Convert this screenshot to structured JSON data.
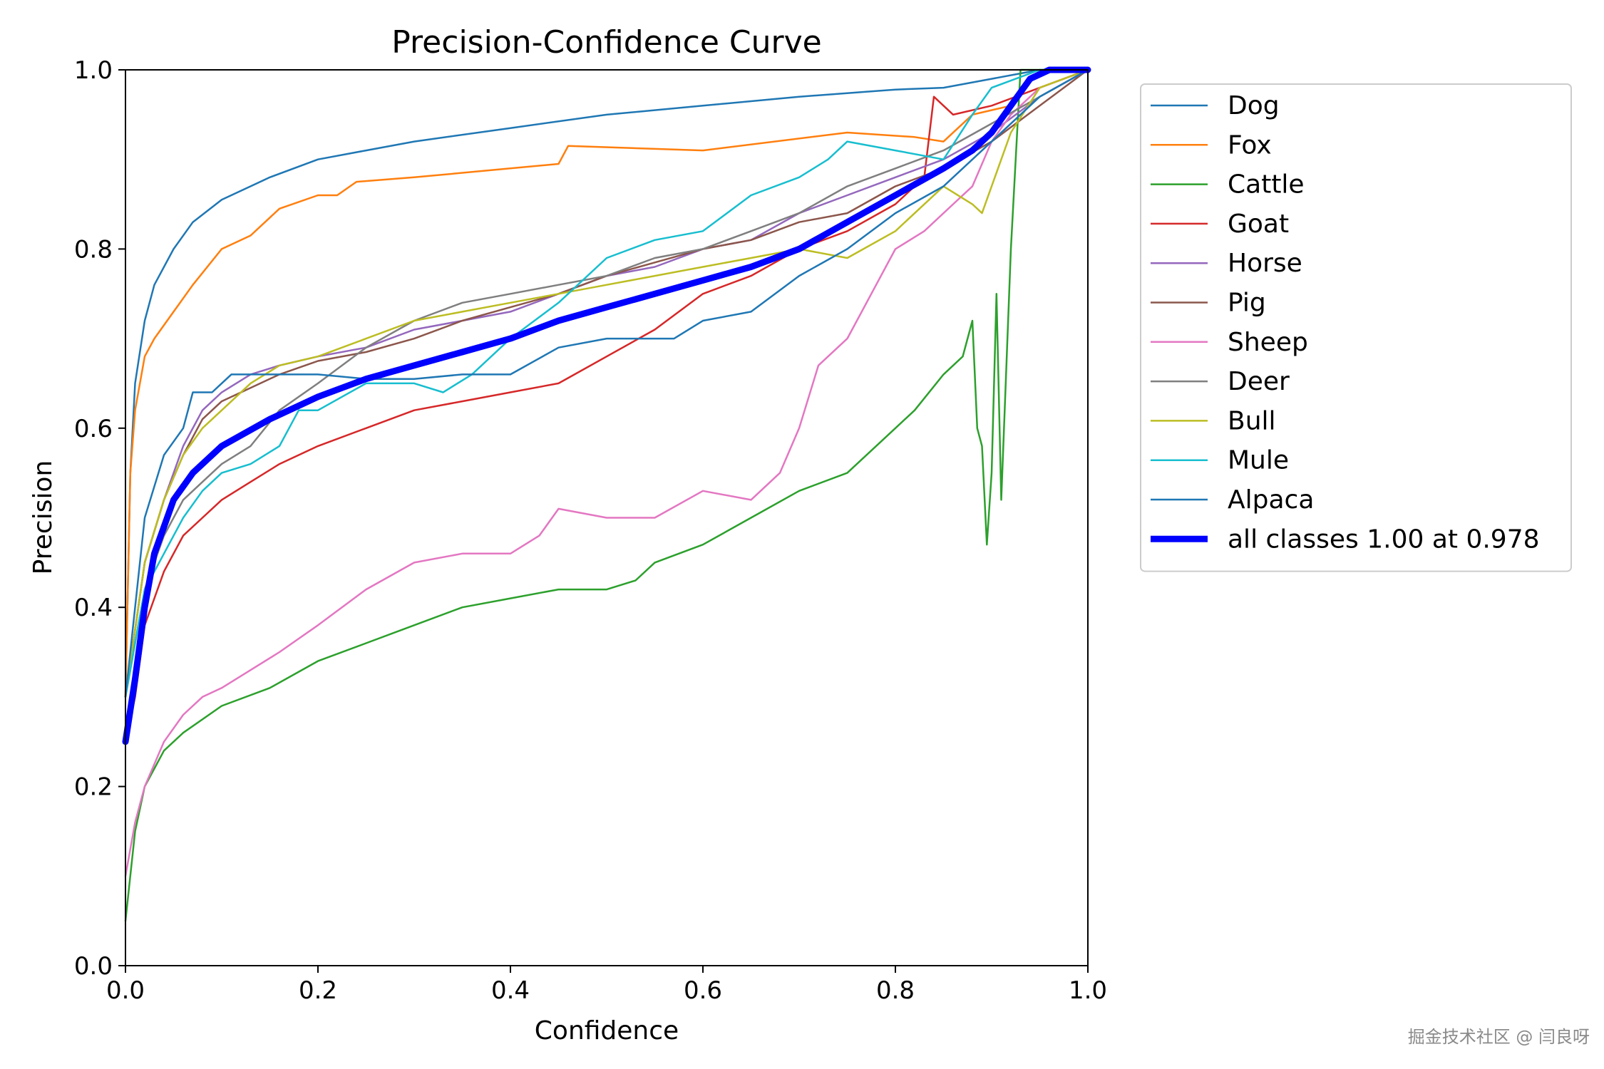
{
  "chart_data": {
    "type": "line",
    "title": "Precision-Confidence Curve",
    "xlabel": "Confidence",
    "ylabel": "Precision",
    "xlim": [
      0,
      1
    ],
    "ylim": [
      0,
      1
    ],
    "xticks": [
      "0.0",
      "0.2",
      "0.4",
      "0.6",
      "0.8",
      "1.0"
    ],
    "yticks": [
      "0.0",
      "0.2",
      "0.4",
      "0.6",
      "0.8",
      "1.0"
    ],
    "grid": false,
    "legend_position": "outside-right-top",
    "series": [
      {
        "name": "Dog",
        "color": "#1f77b4",
        "x": [
          0,
          0.005,
          0.01,
          0.02,
          0.03,
          0.05,
          0.07,
          0.1,
          0.15,
          0.2,
          0.25,
          0.3,
          0.4,
          0.5,
          0.6,
          0.7,
          0.8,
          0.85,
          0.9,
          0.95,
          1.0
        ],
        "y": [
          0.3,
          0.55,
          0.65,
          0.72,
          0.76,
          0.8,
          0.83,
          0.855,
          0.88,
          0.9,
          0.91,
          0.92,
          0.935,
          0.95,
          0.96,
          0.97,
          0.978,
          0.98,
          0.99,
          1.0,
          1.0
        ]
      },
      {
        "name": "Fox",
        "color": "#ff7f0e",
        "x": [
          0,
          0.005,
          0.01,
          0.02,
          0.03,
          0.05,
          0.07,
          0.1,
          0.13,
          0.16,
          0.2,
          0.22,
          0.24,
          0.3,
          0.45,
          0.46,
          0.6,
          0.75,
          0.82,
          0.85,
          0.88,
          0.92,
          0.95,
          1.0
        ],
        "y": [
          0.3,
          0.55,
          0.62,
          0.68,
          0.7,
          0.73,
          0.76,
          0.8,
          0.815,
          0.845,
          0.86,
          0.86,
          0.875,
          0.88,
          0.895,
          0.915,
          0.91,
          0.93,
          0.925,
          0.92,
          0.95,
          0.96,
          1.0,
          1.0
        ]
      },
      {
        "name": "Cattle",
        "color": "#2ca02c",
        "x": [
          0,
          0.01,
          0.02,
          0.04,
          0.06,
          0.1,
          0.15,
          0.2,
          0.25,
          0.3,
          0.35,
          0.4,
          0.45,
          0.5,
          0.53,
          0.55,
          0.6,
          0.65,
          0.7,
          0.75,
          0.8,
          0.82,
          0.85,
          0.87,
          0.88,
          0.885,
          0.89,
          0.895,
          0.9,
          0.905,
          0.91,
          0.92,
          0.93,
          1.0
        ],
        "y": [
          0.05,
          0.15,
          0.2,
          0.24,
          0.26,
          0.29,
          0.31,
          0.34,
          0.36,
          0.38,
          0.4,
          0.41,
          0.42,
          0.42,
          0.43,
          0.45,
          0.47,
          0.5,
          0.53,
          0.55,
          0.6,
          0.62,
          0.66,
          0.68,
          0.72,
          0.6,
          0.58,
          0.47,
          0.55,
          0.75,
          0.52,
          0.8,
          1.0,
          1.0
        ]
      },
      {
        "name": "Goat",
        "color": "#d62728",
        "x": [
          0,
          0.01,
          0.02,
          0.04,
          0.06,
          0.08,
          0.1,
          0.13,
          0.16,
          0.2,
          0.25,
          0.3,
          0.35,
          0.4,
          0.45,
          0.5,
          0.55,
          0.6,
          0.65,
          0.7,
          0.75,
          0.8,
          0.83,
          0.84,
          0.86,
          0.9,
          0.95,
          1.0
        ],
        "y": [
          0.25,
          0.3,
          0.38,
          0.44,
          0.48,
          0.5,
          0.52,
          0.54,
          0.56,
          0.58,
          0.6,
          0.62,
          0.63,
          0.64,
          0.65,
          0.68,
          0.71,
          0.75,
          0.77,
          0.8,
          0.82,
          0.85,
          0.88,
          0.97,
          0.95,
          0.96,
          0.98,
          1.0
        ]
      },
      {
        "name": "Horse",
        "color": "#9467bd",
        "x": [
          0,
          0.02,
          0.04,
          0.06,
          0.08,
          0.1,
          0.13,
          0.16,
          0.2,
          0.25,
          0.3,
          0.35,
          0.4,
          0.45,
          0.5,
          0.55,
          0.6,
          0.65,
          0.7,
          0.75,
          0.8,
          0.85,
          0.9,
          0.95,
          1.0
        ],
        "y": [
          0.3,
          0.45,
          0.52,
          0.58,
          0.62,
          0.64,
          0.66,
          0.67,
          0.68,
          0.69,
          0.71,
          0.72,
          0.73,
          0.75,
          0.77,
          0.78,
          0.8,
          0.81,
          0.84,
          0.86,
          0.88,
          0.9,
          0.93,
          0.97,
          1.0
        ]
      },
      {
        "name": "Pig",
        "color": "#8c564b",
        "x": [
          0,
          0.02,
          0.04,
          0.06,
          0.08,
          0.1,
          0.13,
          0.16,
          0.2,
          0.25,
          0.3,
          0.35,
          0.4,
          0.45,
          0.5,
          0.55,
          0.6,
          0.65,
          0.7,
          0.75,
          0.8,
          0.85,
          0.9,
          0.95,
          1.0
        ],
        "y": [
          0.3,
          0.45,
          0.52,
          0.57,
          0.61,
          0.63,
          0.645,
          0.66,
          0.675,
          0.685,
          0.7,
          0.72,
          0.735,
          0.75,
          0.77,
          0.785,
          0.8,
          0.81,
          0.83,
          0.84,
          0.87,
          0.89,
          0.92,
          0.96,
          1.0
        ]
      },
      {
        "name": "Sheep",
        "color": "#e377c2",
        "x": [
          0,
          0.01,
          0.02,
          0.04,
          0.06,
          0.08,
          0.1,
          0.13,
          0.16,
          0.2,
          0.25,
          0.3,
          0.35,
          0.4,
          0.43,
          0.45,
          0.5,
          0.55,
          0.6,
          0.65,
          0.68,
          0.7,
          0.72,
          0.75,
          0.78,
          0.8,
          0.83,
          0.86,
          0.88,
          0.9,
          0.92,
          0.95,
          1.0
        ],
        "y": [
          0.1,
          0.16,
          0.2,
          0.25,
          0.28,
          0.3,
          0.31,
          0.33,
          0.35,
          0.38,
          0.42,
          0.45,
          0.46,
          0.46,
          0.48,
          0.51,
          0.5,
          0.5,
          0.53,
          0.52,
          0.55,
          0.6,
          0.67,
          0.7,
          0.76,
          0.8,
          0.82,
          0.85,
          0.87,
          0.92,
          0.95,
          0.98,
          1.0
        ]
      },
      {
        "name": "Deer",
        "color": "#7f7f7f",
        "x": [
          0,
          0.02,
          0.04,
          0.06,
          0.08,
          0.1,
          0.13,
          0.16,
          0.2,
          0.25,
          0.3,
          0.35,
          0.4,
          0.45,
          0.5,
          0.55,
          0.6,
          0.65,
          0.7,
          0.75,
          0.8,
          0.85,
          0.9,
          0.95,
          1.0
        ],
        "y": [
          0.3,
          0.42,
          0.48,
          0.52,
          0.54,
          0.56,
          0.58,
          0.62,
          0.65,
          0.69,
          0.72,
          0.74,
          0.75,
          0.76,
          0.77,
          0.79,
          0.8,
          0.82,
          0.84,
          0.87,
          0.89,
          0.91,
          0.94,
          0.97,
          1.0
        ]
      },
      {
        "name": "Bull",
        "color": "#bcbd22",
        "x": [
          0,
          0.02,
          0.04,
          0.06,
          0.08,
          0.1,
          0.13,
          0.16,
          0.2,
          0.25,
          0.3,
          0.35,
          0.4,
          0.45,
          0.5,
          0.55,
          0.6,
          0.65,
          0.7,
          0.75,
          0.8,
          0.85,
          0.88,
          0.89,
          0.92,
          0.95,
          1.0
        ],
        "y": [
          0.3,
          0.45,
          0.52,
          0.57,
          0.6,
          0.62,
          0.65,
          0.67,
          0.68,
          0.7,
          0.72,
          0.73,
          0.74,
          0.75,
          0.76,
          0.77,
          0.78,
          0.79,
          0.8,
          0.79,
          0.82,
          0.87,
          0.85,
          0.84,
          0.93,
          0.98,
          1.0
        ]
      },
      {
        "name": "Mule",
        "color": "#17becf",
        "x": [
          0,
          0.02,
          0.04,
          0.06,
          0.08,
          0.1,
          0.13,
          0.16,
          0.18,
          0.2,
          0.25,
          0.3,
          0.33,
          0.36,
          0.4,
          0.45,
          0.5,
          0.55,
          0.6,
          0.65,
          0.7,
          0.73,
          0.75,
          0.8,
          0.85,
          0.88,
          0.9,
          0.95,
          1.0
        ],
        "y": [
          0.3,
          0.42,
          0.46,
          0.5,
          0.53,
          0.55,
          0.56,
          0.58,
          0.62,
          0.62,
          0.65,
          0.65,
          0.64,
          0.66,
          0.7,
          0.74,
          0.79,
          0.81,
          0.82,
          0.86,
          0.88,
          0.9,
          0.92,
          0.91,
          0.9,
          0.95,
          0.98,
          1.0,
          1.0
        ]
      },
      {
        "name": "Alpaca",
        "color": "#1f77b4",
        "x": [
          0,
          0.02,
          0.04,
          0.06,
          0.07,
          0.09,
          0.1,
          0.11,
          0.15,
          0.2,
          0.25,
          0.3,
          0.35,
          0.4,
          0.45,
          0.5,
          0.55,
          0.57,
          0.6,
          0.65,
          0.7,
          0.75,
          0.8,
          0.85,
          0.9,
          0.95,
          1.0
        ],
        "y": [
          0.3,
          0.5,
          0.57,
          0.6,
          0.64,
          0.64,
          0.65,
          0.66,
          0.66,
          0.66,
          0.655,
          0.655,
          0.66,
          0.66,
          0.69,
          0.7,
          0.7,
          0.7,
          0.72,
          0.73,
          0.77,
          0.8,
          0.84,
          0.87,
          0.92,
          0.97,
          1.0
        ]
      },
      {
        "name": "all classes 1.00 at 0.978",
        "color": "#0000ff",
        "bold": true,
        "x": [
          0,
          0.01,
          0.02,
          0.03,
          0.05,
          0.07,
          0.1,
          0.15,
          0.2,
          0.25,
          0.3,
          0.35,
          0.4,
          0.45,
          0.5,
          0.55,
          0.6,
          0.65,
          0.7,
          0.75,
          0.8,
          0.85,
          0.88,
          0.9,
          0.92,
          0.94,
          0.96,
          0.978,
          1.0
        ],
        "y": [
          0.25,
          0.32,
          0.4,
          0.46,
          0.52,
          0.55,
          0.58,
          0.61,
          0.635,
          0.655,
          0.67,
          0.685,
          0.7,
          0.72,
          0.735,
          0.75,
          0.765,
          0.78,
          0.8,
          0.83,
          0.86,
          0.89,
          0.91,
          0.93,
          0.96,
          0.99,
          1.0,
          1.0,
          1.0
        ]
      }
    ]
  },
  "watermark": "掘金技术社区 @ 闫良呀"
}
